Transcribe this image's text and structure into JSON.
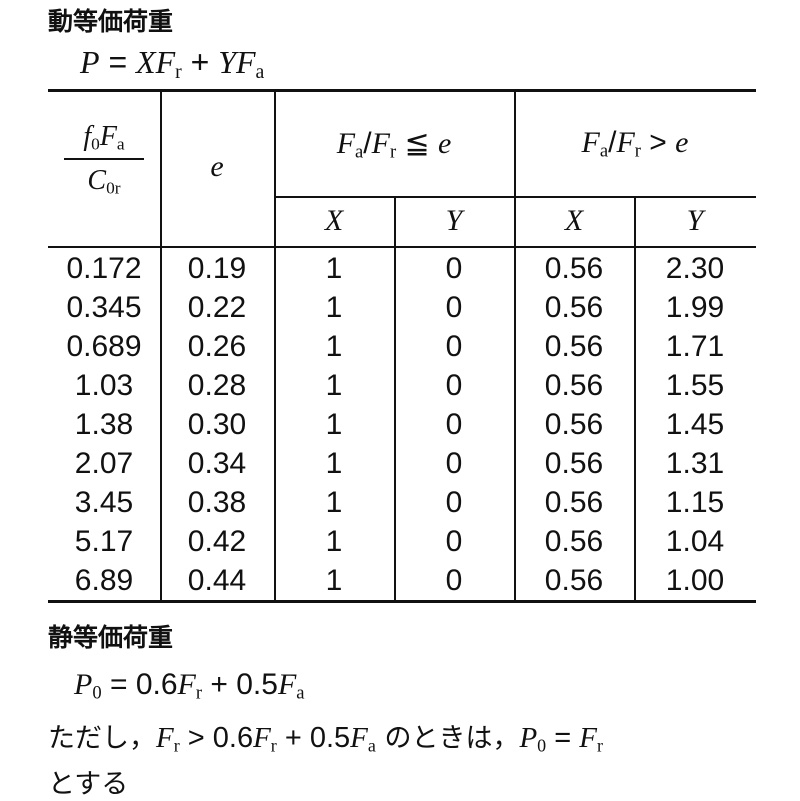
{
  "dynamic": {
    "title": "動等価荷重",
    "formula": "P = XFr + YFa"
  },
  "table": {
    "headers": {
      "col1_num": "f0Fa",
      "col1_den": "C0r",
      "col2": "e",
      "group1": "Fa/Fr ≦ e",
      "group2": "Fa/Fr > e",
      "x": "X",
      "y": "Y"
    },
    "rows": [
      [
        "0.172",
        "0.19",
        "1",
        "0",
        "0.56",
        "2.30"
      ],
      [
        "0.345",
        "0.22",
        "1",
        "0",
        "0.56",
        "1.99"
      ],
      [
        "0.689",
        "0.26",
        "1",
        "0",
        "0.56",
        "1.71"
      ],
      [
        "1.03",
        "0.28",
        "1",
        "0",
        "0.56",
        "1.55"
      ],
      [
        "1.38",
        "0.30",
        "1",
        "0",
        "0.56",
        "1.45"
      ],
      [
        "2.07",
        "0.34",
        "1",
        "0",
        "0.56",
        "1.31"
      ],
      [
        "3.45",
        "0.38",
        "1",
        "0",
        "0.56",
        "1.15"
      ],
      [
        "5.17",
        "0.42",
        "1",
        "0",
        "0.56",
        "1.04"
      ],
      [
        "6.89",
        "0.44",
        "1",
        "0",
        "0.56",
        "1.00"
      ]
    ]
  },
  "static": {
    "title": "静等価荷重",
    "formula": "P0 = 0.6Fr + 0.5Fa",
    "note_prefix": "ただし，",
    "note_condition": "Fr > 0.6Fr + 0.5Fa",
    "note_middle": " のときは，",
    "note_result": "P0 = Fr",
    "note_suffix": "とする"
  }
}
